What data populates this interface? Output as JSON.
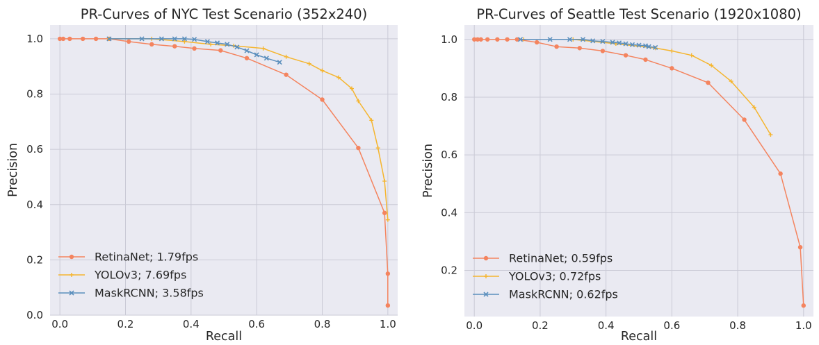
{
  "chart_data": [
    {
      "type": "line",
      "title": "PR-Curves of NYC Test Scenario (352x240)",
      "xlabel": "Recall",
      "ylabel": "Precision",
      "xlim": [
        -0.03,
        1.03
      ],
      "ylim": [
        0.0,
        1.05
      ],
      "xticks": [
        0.0,
        0.2,
        0.4,
        0.6,
        0.8,
        1.0
      ],
      "yticks": [
        0.0,
        0.2,
        0.4,
        0.6,
        0.8,
        1.0
      ],
      "xtick_labels": [
        "0.0",
        "0.2",
        "0.4",
        "0.6",
        "0.8",
        "1.0"
      ],
      "ytick_labels": [
        "0.0",
        "0.2",
        "0.4",
        "0.6",
        "0.8",
        "1.0"
      ],
      "grid": true,
      "legend_position": "lower-left",
      "series": [
        {
          "name": "RetinaNet; 1.79fps",
          "color": "#f4845f",
          "marker": "circle",
          "x": [
            0.0,
            0.01,
            0.03,
            0.07,
            0.11,
            0.15,
            0.21,
            0.28,
            0.35,
            0.41,
            0.49,
            0.57,
            0.69,
            0.8,
            0.91,
            0.99,
            1.0,
            1.0
          ],
          "y": [
            1.0,
            1.0,
            1.0,
            1.0,
            1.0,
            1.0,
            0.99,
            0.98,
            0.973,
            0.965,
            0.958,
            0.93,
            0.87,
            0.78,
            0.605,
            0.37,
            0.15,
            0.035
          ]
        },
        {
          "name": "YOLOv3; 7.69fps",
          "color": "#f5b52e",
          "marker": "plus",
          "x": [
            0.15,
            0.28,
            0.38,
            0.46,
            0.53,
            0.62,
            0.69,
            0.76,
            0.8,
            0.85,
            0.89,
            0.91,
            0.95,
            0.97,
            0.99,
            1.0
          ],
          "y": [
            1.0,
            1.0,
            0.99,
            0.98,
            0.975,
            0.965,
            0.935,
            0.91,
            0.885,
            0.86,
            0.82,
            0.775,
            0.705,
            0.605,
            0.485,
            0.345
          ]
        },
        {
          "name": "MaskRCNN; 3.58fps",
          "color": "#5b8fbd",
          "marker": "x",
          "x": [
            0.15,
            0.25,
            0.31,
            0.35,
            0.38,
            0.41,
            0.45,
            0.48,
            0.51,
            0.54,
            0.57,
            0.6,
            0.63,
            0.67
          ],
          "y": [
            1.0,
            1.0,
            1.0,
            1.0,
            1.0,
            0.998,
            0.99,
            0.985,
            0.98,
            0.97,
            0.957,
            0.942,
            0.93,
            0.915
          ]
        }
      ]
    },
    {
      "type": "line",
      "title": "PR-Curves of Seattle Test Scenario (1920x1080)",
      "xlabel": "Recall",
      "ylabel": "Precision",
      "xlim": [
        -0.03,
        1.03
      ],
      "ylim": [
        0.04,
        1.05
      ],
      "xticks": [
        0.0,
        0.2,
        0.4,
        0.6,
        0.8,
        1.0
      ],
      "yticks": [
        0.2,
        0.4,
        0.6,
        0.8,
        1.0
      ],
      "xtick_labels": [
        "0.0",
        "0.2",
        "0.4",
        "0.6",
        "0.8",
        "1.0"
      ],
      "ytick_labels": [
        "0.2",
        "0.4",
        "0.6",
        "0.8",
        "1.0"
      ],
      "grid": true,
      "legend_position": "lower-left",
      "series": [
        {
          "name": "RetinaNet; 0.59fps",
          "color": "#f4845f",
          "marker": "circle",
          "x": [
            0.0,
            0.01,
            0.02,
            0.04,
            0.07,
            0.1,
            0.13,
            0.19,
            0.25,
            0.32,
            0.39,
            0.46,
            0.52,
            0.6,
            0.71,
            0.82,
            0.93,
            0.99,
            1.0
          ],
          "y": [
            1.0,
            1.0,
            1.0,
            1.0,
            1.0,
            1.0,
            1.0,
            0.99,
            0.975,
            0.97,
            0.96,
            0.945,
            0.93,
            0.9,
            0.85,
            0.722,
            0.535,
            0.28,
            0.078
          ]
        },
        {
          "name": "YOLOv3; 0.72fps",
          "color": "#f5b52e",
          "marker": "plus",
          "x": [
            0.15,
            0.3,
            0.43,
            0.55,
            0.6,
            0.66,
            0.72,
            0.78,
            0.85,
            0.9
          ],
          "y": [
            1.0,
            1.0,
            0.985,
            0.97,
            0.96,
            0.945,
            0.91,
            0.855,
            0.765,
            0.67
          ]
        },
        {
          "name": "MaskRCNN; 0.62fps",
          "color": "#5b8fbd",
          "marker": "x",
          "x": [
            0.14,
            0.23,
            0.29,
            0.33,
            0.36,
            0.39,
            0.42,
            0.44,
            0.46,
            0.48,
            0.5,
            0.52,
            0.53,
            0.55
          ],
          "y": [
            1.0,
            1.0,
            1.0,
            1.0,
            0.995,
            0.993,
            0.99,
            0.988,
            0.985,
            0.982,
            0.98,
            0.978,
            0.975,
            0.972
          ]
        }
      ]
    }
  ]
}
